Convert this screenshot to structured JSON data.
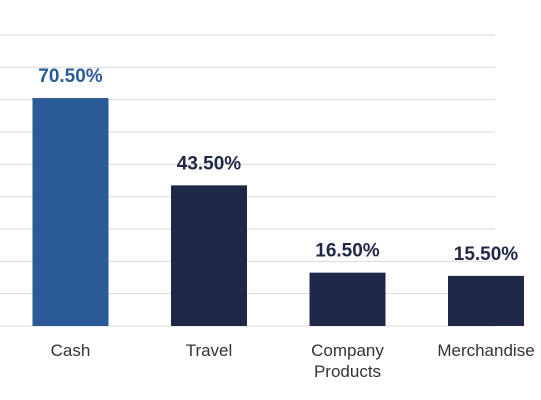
{
  "chart_data": {
    "type": "bar",
    "categories": [
      "Cash",
      "Travel",
      "Company Products",
      "Merchandise"
    ],
    "values": [
      70.5,
      43.5,
      16.5,
      15.5
    ],
    "value_labels": [
      "70.50%",
      "43.50%",
      "16.50%",
      "15.50%"
    ],
    "colors": [
      "#2a5b96",
      "#1f2847",
      "#1f2847",
      "#1f2847"
    ],
    "ylim": [
      0,
      90
    ],
    "yticks": [
      0,
      10,
      20,
      30,
      40,
      50,
      60,
      70,
      80,
      90
    ],
    "grid": true
  }
}
